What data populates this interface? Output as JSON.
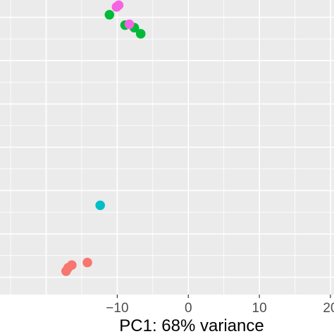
{
  "chart_data": {
    "type": "scatter",
    "title": "",
    "xlabel": "PC1: 68% variance",
    "ylabel": "",
    "xlim": [
      -26.5,
      20.5
    ],
    "ylim": [
      -17,
      17
    ],
    "x_ticks": [
      -10,
      0,
      10,
      20
    ],
    "x_tick_labels": [
      "−10",
      "0",
      "10",
      "20"
    ],
    "y_grid_major": [
      -15,
      -10,
      -5,
      0,
      5,
      10,
      15
    ],
    "grid": true,
    "legend": "none",
    "panel_background": "#ebebeb",
    "grid_color": "#ffffff",
    "series": [
      {
        "color": "#f8766d",
        "points": [
          {
            "x": -14.2,
            "y": -13.3
          },
          {
            "x": -16.4,
            "y": -13.6
          },
          {
            "x": -16.9,
            "y": -13.9
          },
          {
            "x": -17.2,
            "y": -14.3
          }
        ]
      },
      {
        "color": "#00ba38",
        "points": [
          {
            "x": -11.1,
            "y": 15.3
          },
          {
            "x": -8.9,
            "y": 14.1
          },
          {
            "x": -7.6,
            "y": 13.8
          },
          {
            "x": -6.7,
            "y": 13.1
          }
        ]
      },
      {
        "color": "#00bfc4",
        "points": [
          {
            "x": -12.4,
            "y": -6.7
          }
        ]
      },
      {
        "color": "#f564e3",
        "points": [
          {
            "x": -10.1,
            "y": 16.2
          },
          {
            "x": -9.8,
            "y": 16.4
          },
          {
            "x": -8.3,
            "y": 14.2
          }
        ]
      }
    ]
  }
}
